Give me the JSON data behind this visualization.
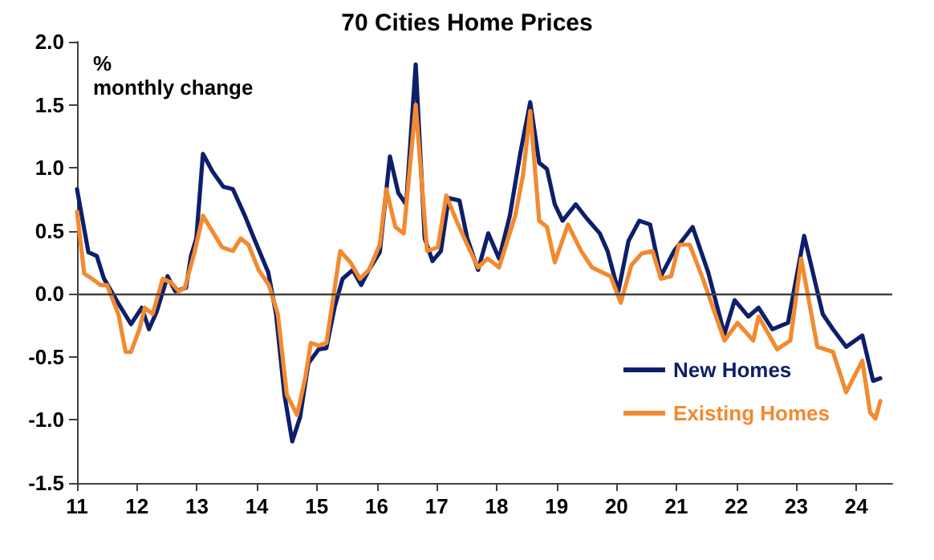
{
  "chart_data": {
    "type": "line",
    "title": "70 Cities Home Prices",
    "ylabel": "% monthly change",
    "xlim": [
      2011,
      2024.6
    ],
    "xticks": [
      {
        "value": 2011,
        "label": "11"
      },
      {
        "value": 2012,
        "label": "12"
      },
      {
        "value": 2013,
        "label": "13"
      },
      {
        "value": 2014,
        "label": "14"
      },
      {
        "value": 2015,
        "label": "15"
      },
      {
        "value": 2016,
        "label": "16"
      },
      {
        "value": 2017,
        "label": "17"
      },
      {
        "value": 2018,
        "label": "18"
      },
      {
        "value": 2019,
        "label": "19"
      },
      {
        "value": 2020,
        "label": "20"
      },
      {
        "value": 2021,
        "label": "21"
      },
      {
        "value": 2022,
        "label": "22"
      },
      {
        "value": 2023,
        "label": "23"
      },
      {
        "value": 2024,
        "label": "24"
      }
    ],
    "ylim": [
      -1.5,
      2
    ],
    "yticks": [
      {
        "value": -1.5,
        "label": "-1.5"
      },
      {
        "value": -1,
        "label": "-1.0"
      },
      {
        "value": -0.5,
        "label": "-0.5"
      },
      {
        "value": 0,
        "label": "0.0"
      },
      {
        "value": 0.5,
        "label": "0.5"
      },
      {
        "value": 1,
        "label": "1.0"
      },
      {
        "value": 1.5,
        "label": "1.5"
      },
      {
        "value": 2,
        "label": "2.0"
      }
    ],
    "grid": false,
    "legend": "bottom right",
    "marker": "none",
    "line_style": "solid",
    "ref_lines": [
      {
        "axis": "y",
        "value": 0,
        "color": "#404040"
      }
    ],
    "series": [
      {
        "name": "New Homes",
        "color": "#0d1f6b",
        "x": [
          2011.0,
          2011.19,
          2011.33,
          2011.45,
          2011.67,
          2011.9,
          2012.08,
          2012.2,
          2012.33,
          2012.51,
          2012.64,
          2012.82,
          2012.9,
          2012.99,
          2013.1,
          2013.26,
          2013.44,
          2013.6,
          2013.8,
          2013.97,
          2014.19,
          2014.32,
          2014.46,
          2014.59,
          2014.72,
          2014.86,
          2015.03,
          2015.16,
          2015.3,
          2015.43,
          2015.6,
          2015.74,
          2015.87,
          2016.05,
          2016.22,
          2016.36,
          2016.49,
          2016.65,
          2016.8,
          2016.93,
          2017.07,
          2017.2,
          2017.38,
          2017.51,
          2017.69,
          2017.86,
          2018.04,
          2018.22,
          2018.4,
          2018.56,
          2018.71,
          2018.84,
          2018.97,
          2019.1,
          2019.32,
          2019.5,
          2019.72,
          2019.85,
          2020.03,
          2020.2,
          2020.38,
          2020.56,
          2020.74,
          2020.96,
          2021.27,
          2021.53,
          2021.8,
          2021.97,
          2022.2,
          2022.37,
          2022.6,
          2022.86,
          2023.13,
          2023.44,
          2023.61,
          2023.83,
          2024.1,
          2024.28,
          2024.4
        ],
        "values": [
          0.83,
          0.33,
          0.3,
          0.12,
          -0.06,
          -0.24,
          -0.11,
          -0.28,
          -0.14,
          0.14,
          0.02,
          0.05,
          0.3,
          0.44,
          1.11,
          0.97,
          0.85,
          0.83,
          0.62,
          0.42,
          0.17,
          -0.16,
          -0.8,
          -1.17,
          -0.98,
          -0.55,
          -0.44,
          -0.43,
          -0.1,
          0.12,
          0.19,
          0.07,
          0.19,
          0.33,
          1.09,
          0.8,
          0.71,
          1.82,
          0.44,
          0.26,
          0.34,
          0.76,
          0.74,
          0.44,
          0.19,
          0.48,
          0.28,
          0.62,
          1.13,
          1.52,
          1.04,
          0.99,
          0.71,
          0.58,
          0.71,
          0.6,
          0.48,
          0.34,
          0.02,
          0.42,
          0.58,
          0.55,
          0.14,
          0.34,
          0.53,
          0.17,
          -0.32,
          -0.05,
          -0.18,
          -0.11,
          -0.28,
          -0.23,
          0.46,
          -0.16,
          -0.28,
          -0.42,
          -0.33,
          -0.69,
          -0.67
        ]
      },
      {
        "name": "Existing Homes",
        "color": "#f28a30",
        "x": [
          2011.0,
          2011.12,
          2011.25,
          2011.39,
          2011.5,
          2011.69,
          2011.81,
          2011.9,
          2012.04,
          2012.13,
          2012.26,
          2012.43,
          2012.57,
          2012.7,
          2012.8,
          2012.96,
          2013.1,
          2013.24,
          2013.42,
          2013.6,
          2013.73,
          2013.86,
          2014.03,
          2014.2,
          2014.35,
          2014.5,
          2014.67,
          2014.81,
          2014.9,
          2015.03,
          2015.16,
          2015.39,
          2015.56,
          2015.72,
          2015.87,
          2016.05,
          2016.16,
          2016.31,
          2016.45,
          2016.65,
          2016.84,
          2017.02,
          2017.16,
          2017.33,
          2017.51,
          2017.69,
          2017.85,
          2018.04,
          2018.31,
          2018.44,
          2018.56,
          2018.71,
          2018.84,
          2018.97,
          2019.19,
          2019.41,
          2019.59,
          2019.9,
          2020.07,
          2020.25,
          2020.42,
          2020.6,
          2020.74,
          2020.91,
          2021.04,
          2021.22,
          2021.44,
          2021.8,
          2022.02,
          2022.28,
          2022.37,
          2022.68,
          2022.9,
          2023.08,
          2023.35,
          2023.61,
          2023.83,
          2024.1,
          2024.23,
          2024.32,
          2024.4
        ],
        "values": [
          0.65,
          0.16,
          0.12,
          0.07,
          0.07,
          -0.16,
          -0.46,
          -0.46,
          -0.28,
          -0.11,
          -0.16,
          0.12,
          0.09,
          0.02,
          0.05,
          0.33,
          0.62,
          0.51,
          0.37,
          0.34,
          0.44,
          0.39,
          0.19,
          0.07,
          -0.16,
          -0.8,
          -0.96,
          -0.66,
          -0.39,
          -0.41,
          -0.39,
          0.34,
          0.25,
          0.12,
          0.19,
          0.39,
          0.83,
          0.53,
          0.48,
          1.5,
          0.34,
          0.37,
          0.78,
          0.58,
          0.39,
          0.21,
          0.28,
          0.21,
          0.62,
          0.94,
          1.45,
          0.58,
          0.53,
          0.25,
          0.55,
          0.34,
          0.21,
          0.14,
          -0.07,
          0.23,
          0.32,
          0.34,
          0.12,
          0.14,
          0.39,
          0.39,
          0.12,
          -0.37,
          -0.23,
          -0.37,
          -0.18,
          -0.44,
          -0.37,
          0.28,
          -0.42,
          -0.46,
          -0.78,
          -0.53,
          -0.94,
          -0.99,
          -0.85
        ]
      }
    ]
  }
}
